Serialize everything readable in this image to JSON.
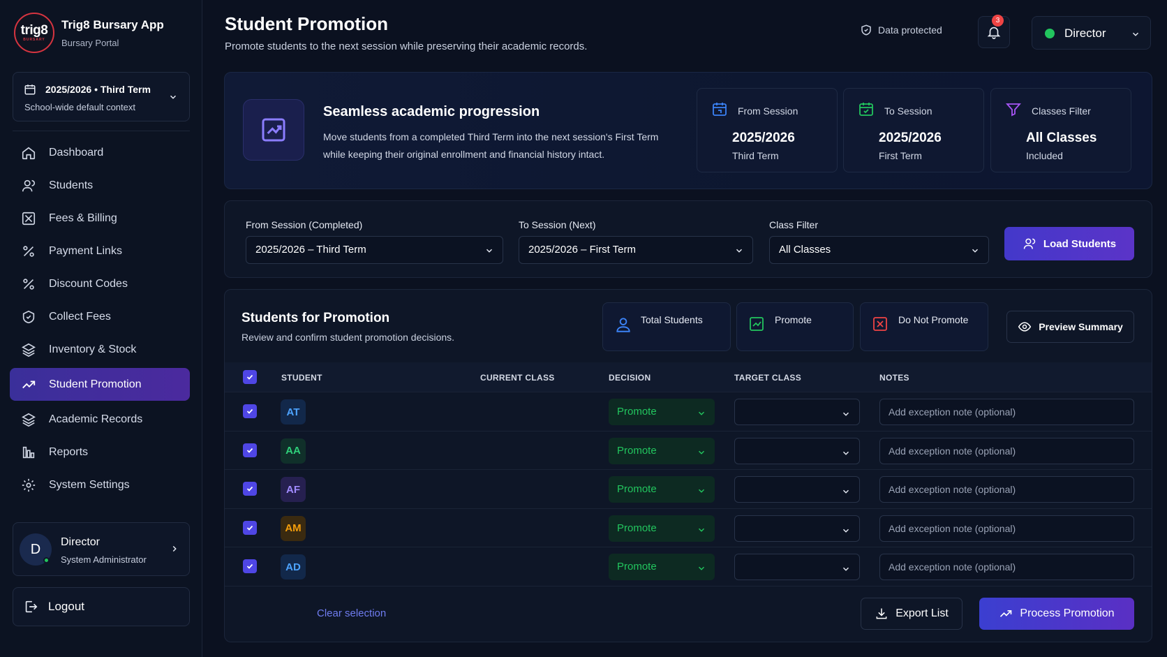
{
  "app": {
    "title": "Trig8 Bursary App",
    "subtitle": "Bursary Portal",
    "logo_text": "trig8",
    "logo_sub": "BURSARY"
  },
  "session_selector": {
    "label": "2025/2026 • Third Term",
    "context": "School-wide default context"
  },
  "sidebar": {
    "items": [
      {
        "label": "Dashboard",
        "icon": "home-icon"
      },
      {
        "label": "Students",
        "icon": "users-icon"
      },
      {
        "label": "Fees & Billing",
        "icon": "receipt-icon"
      },
      {
        "label": "Payment Links",
        "icon": "percent-icon"
      },
      {
        "label": "Discount Codes",
        "icon": "percent-icon"
      },
      {
        "label": "Collect Fees",
        "icon": "wallet-icon"
      },
      {
        "label": "Inventory & Stock",
        "icon": "layers-icon"
      },
      {
        "label": "Student Promotion",
        "icon": "trending-up-icon",
        "active": true
      },
      {
        "label": "Academic Records",
        "icon": "layers-icon"
      },
      {
        "label": "Reports",
        "icon": "bar-chart-icon"
      },
      {
        "label": "System Settings",
        "icon": "gear-icon"
      }
    ]
  },
  "user": {
    "initial": "D",
    "name": "Director",
    "role": "System Administrator"
  },
  "logout_label": "Logout",
  "header": {
    "title": "Student Promotion",
    "subtitle": "Promote students to the next session while preserving their academic records.",
    "protected_label": "Data protected",
    "notification_count": "3",
    "role_label": "Director"
  },
  "hero": {
    "title": "Seamless academic progression",
    "description": "Move students from a completed Third Term into the next session's First Term while keeping their original enrollment and financial history intact.",
    "stats": [
      {
        "label": "From Session",
        "value": "2025/2026",
        "sub": "Third Term"
      },
      {
        "label": "To Session",
        "value": "2025/2026",
        "sub": "First Term"
      },
      {
        "label": "Classes Filter",
        "value": "All Classes",
        "sub": "Included"
      }
    ]
  },
  "filters": {
    "from_label": "From Session (Completed)",
    "from_value": "2025/2026 – Third Term",
    "to_label": "To Session (Next)",
    "to_value": "2025/2026 – First Term",
    "class_label": "Class Filter",
    "class_value": "All Classes",
    "load_button": "Load Students"
  },
  "promotion": {
    "title": "Students for Promotion",
    "subtitle": "Review and confirm student promotion decisions.",
    "total_label": "Total Students",
    "total_value": "",
    "promote_label": "Promote",
    "promote_value": "",
    "not_promote_label": "Do Not Promote",
    "not_promote_value": "",
    "preview_button": "Preview Summary",
    "columns": {
      "student": "STUDENT",
      "current_class": "CURRENT CLASS",
      "decision": "DECISION",
      "target_class": "TARGET CLASS",
      "notes": "NOTES"
    },
    "rows": [
      {
        "initials": "AT",
        "avatar_bg": "#12284a",
        "avatar_fg": "#4da3ff",
        "name": "",
        "id": "",
        "current_class": "",
        "decision": "Promote",
        "target_class": "",
        "note_placeholder": "Add exception note (optional)"
      },
      {
        "initials": "AA",
        "avatar_bg": "#10302a",
        "avatar_fg": "#2fd07a",
        "name": "",
        "id": "",
        "current_class": "",
        "decision": "Promote",
        "target_class": "",
        "note_placeholder": "Add exception note (optional)"
      },
      {
        "initials": "AF",
        "avatar_bg": "#262050",
        "avatar_fg": "#a18bff",
        "name": "",
        "id": "",
        "current_class": "",
        "decision": "Promote",
        "target_class": "",
        "note_placeholder": "Add exception note (optional)"
      },
      {
        "initials": "AM",
        "avatar_bg": "#3a2a10",
        "avatar_fg": "#f59e0b",
        "name": "",
        "id": "",
        "current_class": "",
        "decision": "Promote",
        "target_class": "",
        "note_placeholder": "Add exception note (optional)"
      },
      {
        "initials": "AD",
        "avatar_bg": "#12284a",
        "avatar_fg": "#4da3ff",
        "name": "",
        "id": "",
        "current_class": "",
        "decision": "Promote",
        "target_class": "",
        "note_placeholder": "Add exception note (optional)"
      }
    ],
    "selected_label": "",
    "clear_label": "Clear selection",
    "export_button": "Export List",
    "process_button": "Process Promotion"
  },
  "colors": {
    "accent": "#4f46e5",
    "accent2": "#5b34c8",
    "success": "#22c55e",
    "danger": "#ef4444",
    "bg": "#0b1120"
  }
}
